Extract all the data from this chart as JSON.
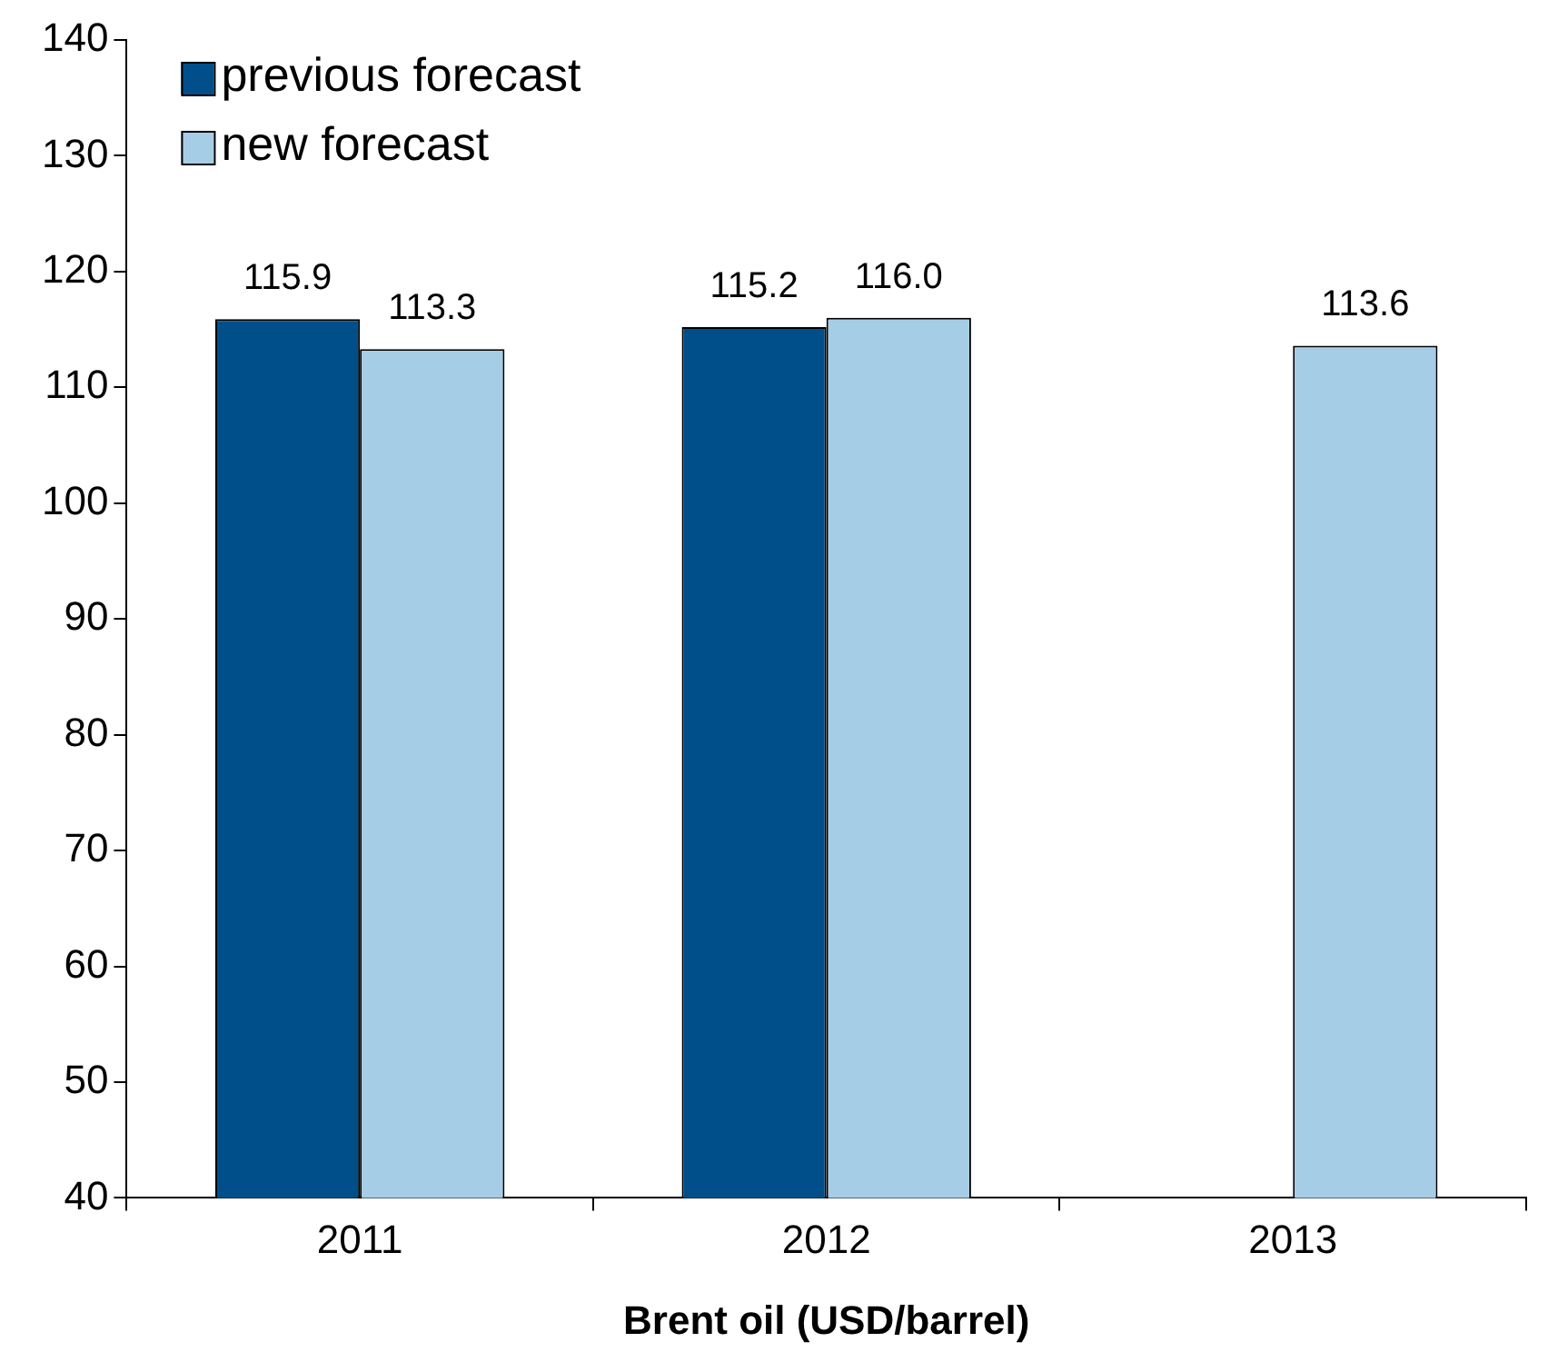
{
  "chart_data": {
    "type": "bar",
    "xlabel": "Brent oil (USD/barrel)",
    "categories": [
      "2011",
      "2012",
      "2013"
    ],
    "series": [
      {
        "name": "previous forecast",
        "color": "#004f8b",
        "values": [
          115.9,
          115.2,
          null
        ],
        "value_labels": [
          "115.9",
          "115.2",
          null
        ]
      },
      {
        "name": "new forecast",
        "color": "#a6cde6",
        "values": [
          113.3,
          116.0,
          113.6
        ],
        "value_labels": [
          "113.3",
          "116.0",
          "113.6"
        ]
      }
    ],
    "ylim": [
      40,
      140
    ],
    "yticks": [
      40,
      50,
      60,
      70,
      80,
      90,
      100,
      110,
      120,
      130,
      140
    ],
    "grid": false,
    "legend": "top left"
  }
}
